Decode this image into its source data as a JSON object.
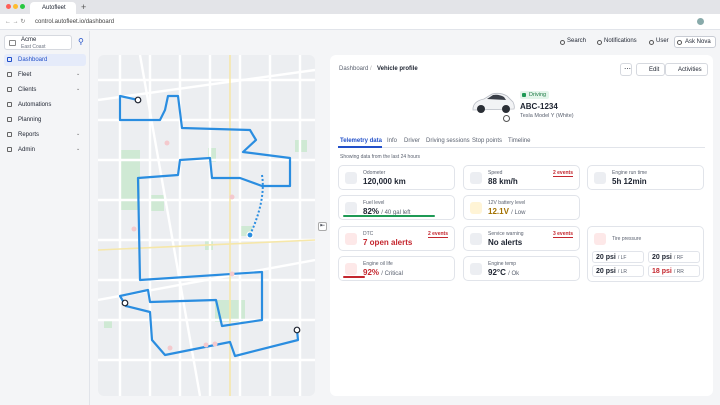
{
  "browser": {
    "tab": "Autofleet",
    "url": "control.autofleet.io/dashboard"
  },
  "sidebar": {
    "org": "Acme",
    "region": "East Coast",
    "nav": [
      "Dashboard",
      "Fleet",
      "Clients",
      "Automations",
      "Planning",
      "Reports",
      "Admin"
    ]
  },
  "topbar": {
    "actions": [
      "Search",
      "Notifications",
      "User",
      "Ask Nova"
    ]
  },
  "breadcrumb": [
    "Dashboard",
    "Vehicle profile"
  ],
  "buttons": [
    "Edit",
    "Activities"
  ],
  "vehicle": {
    "status": "Driving",
    "plate": "ABC-1234",
    "model": "Tesla Model Y (White)"
  },
  "tabs": [
    "Telemetry data",
    "Info",
    "Driver",
    "Driving sessions",
    "Stop points",
    "Timeline"
  ],
  "note": "Showing data from the last 24 hours",
  "cards": [
    {
      "label": "Odometer",
      "value": "120,000 km"
    },
    {
      "label": "Speed",
      "value": "88 km/h",
      "badge": "2 events"
    },
    {
      "label": "Engine run time",
      "value": "5h 12min"
    },
    {
      "label": "Fuel level",
      "value": "82%",
      "sub": "/ 40 gal left"
    },
    {
      "label": "12V battery level",
      "value": "12.1V",
      "sub": "/ Low"
    },
    {
      "label": "DTC",
      "value": "7 open alerts",
      "badge": "2 events"
    },
    {
      "label": "Service warning",
      "value": "No alerts",
      "badge": "3 events"
    },
    {
      "label": "Engine oil life",
      "value": "92%",
      "sub": "/ Critical"
    },
    {
      "label": "Engine temp",
      "value": "92°C",
      "sub": "/ Ok"
    }
  ],
  "tire_pressure": {
    "label": "Tire pressure",
    "tires": [
      {
        "value": "20 psi",
        "position": "/ LF"
      },
      {
        "value": "20 psi",
        "position": "/ RF"
      },
      {
        "value": "20 psi",
        "position": "/ LR"
      },
      {
        "value": "18 psi",
        "position": "/ RR"
      }
    ]
  }
}
